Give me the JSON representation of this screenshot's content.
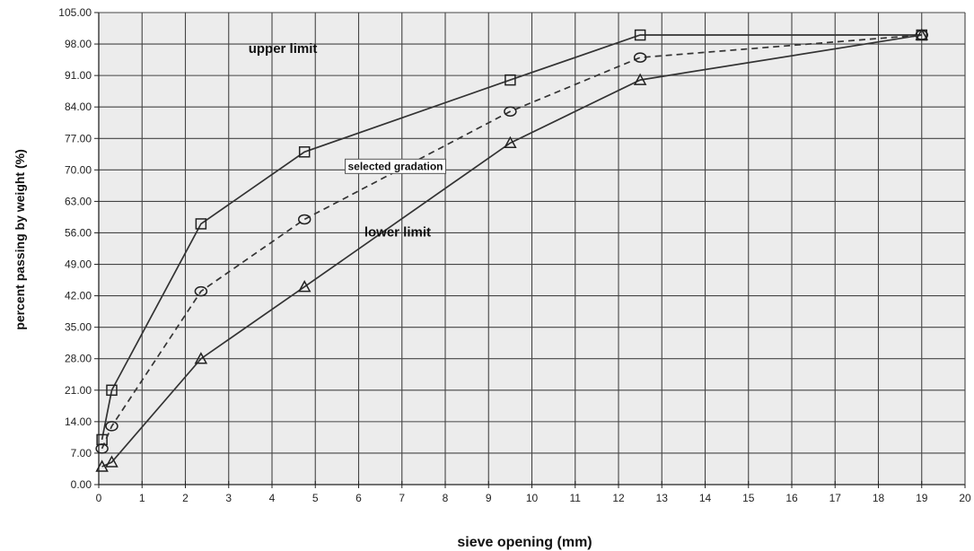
{
  "chart_data": {
    "type": "line",
    "title": "",
    "xlabel": "sieve opening (mm)",
    "ylabel": "percent passing by weight (%)",
    "xlim": [
      0,
      20
    ],
    "ylim": [
      0,
      105
    ],
    "x_ticks": [
      0,
      1,
      2,
      3,
      4,
      5,
      6,
      7,
      8,
      9,
      10,
      11,
      12,
      13,
      14,
      15,
      16,
      17,
      18,
      19,
      20
    ],
    "y_ticks": [
      "0.00",
      "7.00",
      "14.00",
      "21.00",
      "28.00",
      "35.00",
      "42.00",
      "49.00",
      "56.00",
      "63.00",
      "70.00",
      "77.00",
      "84.00",
      "91.00",
      "98.00",
      "105.00"
    ],
    "grid": true,
    "legend": "none",
    "series": [
      {
        "name": "upper limit",
        "marker": "square",
        "line_style": "solid",
        "x": [
          0.075,
          0.3,
          2.36,
          4.75,
          9.5,
          12.5,
          19
        ],
        "y": [
          10,
          21,
          58,
          74,
          90,
          100,
          100
        ]
      },
      {
        "name": "selected gradation",
        "marker": "circle",
        "line_style": "dashed",
        "x": [
          0.075,
          0.3,
          2.36,
          4.75,
          9.5,
          12.5,
          19
        ],
        "y": [
          8,
          13,
          43,
          59,
          83,
          95,
          100
        ]
      },
      {
        "name": "lower limit",
        "marker": "triangle",
        "line_style": "solid",
        "x": [
          0.075,
          0.3,
          2.36,
          4.75,
          9.5,
          12.5,
          19
        ],
        "y": [
          4,
          5,
          28,
          44,
          76,
          90,
          100
        ]
      }
    ],
    "colors": {
      "plot_background": "#ececec",
      "grid": "#444444",
      "lines": "#333333"
    }
  }
}
